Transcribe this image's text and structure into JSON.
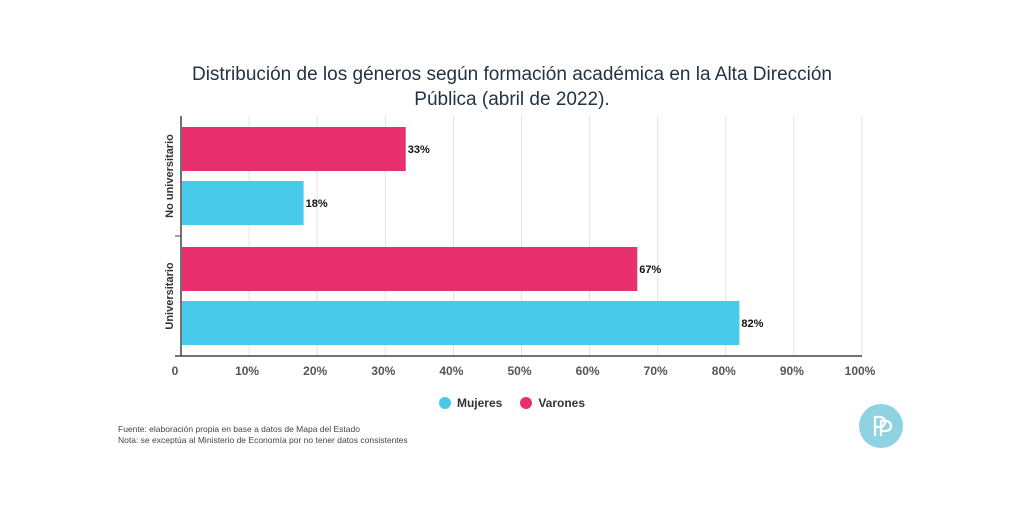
{
  "title_lines": [
    "Distribución de los géneros según formación académica en la Alta Dirección",
    "Pública (abril de 2022)."
  ],
  "chart_data": {
    "type": "bar",
    "orientation": "horizontal",
    "categories": [
      "No universitario",
      "Universitario"
    ],
    "series": [
      {
        "name": "Varones",
        "color": "#e8306f",
        "values": [
          33,
          67
        ]
      },
      {
        "name": "Mujeres",
        "color": "#48cbea",
        "values": [
          18,
          82
        ]
      }
    ],
    "value_labels": {
      "No universitario": {
        "Varones": "33%",
        "Mujeres": "18%"
      },
      "Universitario": {
        "Varones": "67%",
        "Mujeres": "82%"
      }
    },
    "xlim": [
      0,
      100
    ],
    "ticks": [
      "0",
      "10%",
      "20%",
      "30%",
      "40%",
      "50%",
      "60%",
      "70%",
      "80%",
      "90%",
      "100%"
    ],
    "grid": true,
    "legend_position": "bottom"
  },
  "legend": [
    {
      "name": "Mujeres",
      "color": "#48cbea"
    },
    {
      "name": "Varones",
      "color": "#e8306f"
    }
  ],
  "notes": [
    "Fuente: elaboración propia en base a datos de Mapa del Estado",
    "Nota: se exceptúa al Ministerio de Economía por no tener datos consistentes"
  ],
  "logo_icon": "pp-logo-icon"
}
